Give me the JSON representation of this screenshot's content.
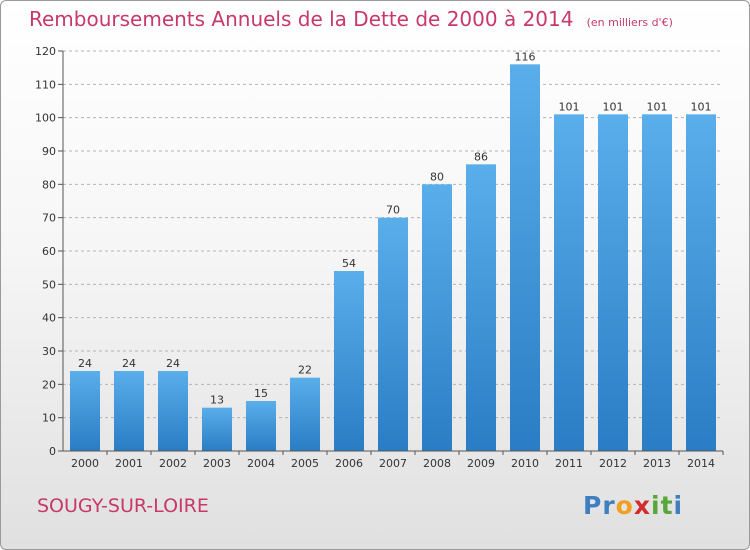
{
  "chart_data": {
    "type": "bar",
    "title": "Remboursements Annuels de la Dette de 2000 à 2014",
    "unit_note": "(en milliers d'€)",
    "categories": [
      "2000",
      "2001",
      "2002",
      "2003",
      "2004",
      "2005",
      "2006",
      "2007",
      "2008",
      "2009",
      "2010",
      "2011",
      "2012",
      "2013",
      "2014"
    ],
    "values": [
      24,
      24,
      24,
      13,
      15,
      22,
      54,
      70,
      80,
      86,
      116,
      101,
      101,
      101,
      101
    ],
    "ylim": [
      0,
      120
    ],
    "yticks": [
      0,
      10,
      20,
      30,
      40,
      50,
      60,
      70,
      80,
      90,
      100,
      110,
      120
    ],
    "grid": true,
    "bar_color": "#4a9de2"
  },
  "commune": "SOUGY-SUR-LOIRE",
  "logo": {
    "letters": [
      "P",
      "r",
      "o",
      "x",
      "i",
      "t",
      "i"
    ],
    "colors": [
      "#3f7fc1",
      "#3f7fc1",
      "#f0a020",
      "#d22c2c",
      "#57a83a",
      "#57a83a",
      "#3f7fc1"
    ]
  }
}
